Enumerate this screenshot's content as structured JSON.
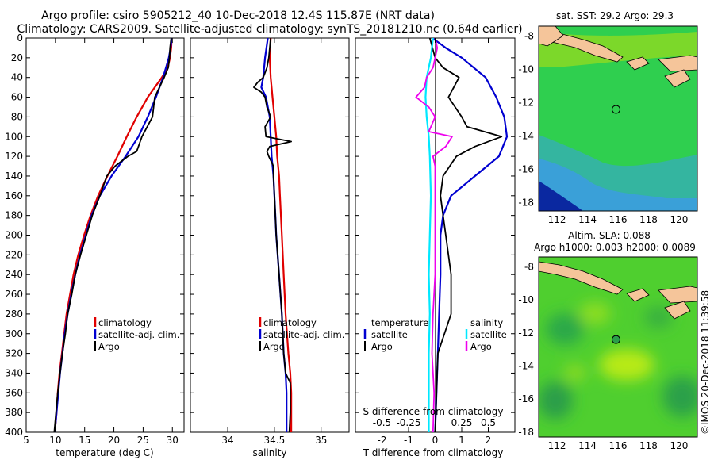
{
  "title_line1": "Argo profile: csiro 5905212_40 10-Dec-2018 12.4S 115.87E (NRT data)",
  "title_line2": "Climatology: CARS2009. Satellite-adjusted climatology: synTS_20181210.nc (0.64d earlier)",
  "watermark": "©IMOS 20-Dec-2018 11:39:58",
  "colors": {
    "climatology": "#e00000",
    "satellite": "#0000d0",
    "argo": "#000000",
    "s_satellite": "#00e8ff",
    "s_argo": "#ee00ee",
    "land": "#f5c59a"
  },
  "chart_data": [
    {
      "id": "temperature",
      "type": "line",
      "xlabel": "temperature (deg C)",
      "ylabel": "",
      "xlim": [
        5,
        32
      ],
      "ylim": [
        400,
        0
      ],
      "xticks": [
        "5",
        "10",
        "15",
        "20",
        "25",
        "30"
      ],
      "xtick_values": [
        5,
        10,
        15,
        20,
        25,
        30
      ],
      "yticks": [
        "0",
        "20",
        "40",
        "60",
        "80",
        "100",
        "120",
        "140",
        "160",
        "180",
        "200",
        "220",
        "240",
        "260",
        "280",
        "300",
        "320",
        "340",
        "360",
        "380",
        "400"
      ],
      "ytick_values": [
        0,
        20,
        40,
        60,
        80,
        100,
        120,
        140,
        160,
        180,
        200,
        220,
        240,
        260,
        280,
        300,
        320,
        340,
        360,
        380,
        400
      ],
      "legend": [
        "climatology",
        "satellite-adj. clim.",
        "Argo"
      ],
      "series": [
        {
          "name": "climatology",
          "color": "#e00000",
          "depth": [
            0,
            10,
            20,
            30,
            40,
            60,
            80,
            100,
            120,
            140,
            160,
            180,
            200,
            220,
            240,
            260,
            280,
            300,
            320,
            340,
            360,
            380,
            400
          ],
          "values": [
            29.9,
            29.8,
            29.6,
            29.2,
            28.2,
            25.8,
            23.9,
            22.2,
            20.6,
            18.9,
            17.3,
            16.0,
            14.9,
            13.9,
            13.1,
            12.5,
            11.9,
            11.5,
            11.1,
            10.7,
            10.4,
            10.2,
            9.9
          ]
        },
        {
          "name": "satellite-adj. clim.",
          "color": "#0000d0",
          "depth": [
            0,
            10,
            20,
            30,
            40,
            60,
            80,
            100,
            120,
            140,
            160,
            180,
            200,
            220,
            240,
            260,
            280,
            300,
            320,
            340,
            360,
            380,
            400
          ],
          "values": [
            29.9,
            29.7,
            29.4,
            28.9,
            28.4,
            27.2,
            25.8,
            24.2,
            22.0,
            19.6,
            17.6,
            16.2,
            15.2,
            14.2,
            13.4,
            12.7,
            12.1,
            11.6,
            11.2,
            10.8,
            10.5,
            10.2,
            9.9
          ]
        },
        {
          "name": "Argo",
          "color": "#000000",
          "depth": [
            0,
            10,
            20,
            30,
            40,
            60,
            80,
            100,
            115,
            120,
            130,
            140,
            150,
            160,
            180,
            200,
            220,
            240,
            260,
            280,
            300,
            320,
            340,
            360,
            380,
            400
          ],
          "values": [
            29.8,
            29.6,
            29.5,
            29.3,
            28.6,
            27.0,
            26.6,
            24.8,
            23.9,
            22.4,
            20.2,
            18.8,
            18.2,
            17.6,
            16.3,
            15.3,
            14.3,
            13.4,
            12.8,
            12.1,
            11.7,
            11.2,
            10.8,
            10.4,
            10.1,
            9.8
          ]
        }
      ]
    },
    {
      "id": "salinity",
      "type": "line",
      "xlabel": "salinity",
      "xlim": [
        33.6,
        35.3
      ],
      "ylim": [
        400,
        0
      ],
      "xticks": [
        "34",
        "34.5",
        "35"
      ],
      "xtick_values": [
        34,
        34.5,
        35
      ],
      "legend": [
        "climatology",
        "satellite-adj. clim.",
        "Argo"
      ],
      "series": [
        {
          "name": "climatology",
          "color": "#e00000",
          "depth": [
            0,
            20,
            40,
            60,
            80,
            100,
            120,
            140,
            160,
            180,
            200,
            240,
            280,
            320,
            340,
            360,
            380,
            400
          ],
          "values": [
            34.46,
            34.45,
            34.46,
            34.48,
            34.5,
            34.52,
            34.53,
            34.55,
            34.56,
            34.57,
            34.58,
            34.6,
            34.62,
            34.65,
            34.67,
            34.68,
            34.68,
            34.68
          ]
        },
        {
          "name": "satellite-adj. clim.",
          "color": "#0000d0",
          "depth": [
            0,
            20,
            40,
            50,
            60,
            80,
            100,
            120,
            140,
            160,
            180,
            200,
            240,
            280,
            320,
            340,
            360,
            380,
            400
          ],
          "values": [
            34.43,
            34.4,
            34.38,
            34.36,
            34.41,
            34.45,
            34.46,
            34.47,
            34.49,
            34.5,
            34.51,
            34.52,
            34.55,
            34.58,
            34.6,
            34.62,
            34.63,
            34.63,
            34.63
          ]
        },
        {
          "name": "Argo",
          "color": "#000000",
          "depth": [
            0,
            10,
            20,
            30,
            40,
            45,
            50,
            55,
            60,
            70,
            80,
            90,
            100,
            105,
            110,
            115,
            120,
            130,
            140,
            160,
            180,
            200,
            240,
            280,
            320,
            340,
            350,
            360,
            380,
            400
          ],
          "values": [
            34.46,
            34.45,
            34.44,
            34.42,
            34.38,
            34.32,
            34.28,
            34.36,
            34.4,
            34.42,
            34.46,
            34.4,
            34.41,
            34.68,
            34.45,
            34.42,
            34.44,
            34.49,
            34.49,
            34.5,
            34.51,
            34.52,
            34.55,
            34.58,
            34.6,
            34.62,
            34.67,
            34.67,
            34.67,
            34.66
          ]
        }
      ]
    },
    {
      "id": "difference",
      "type": "line",
      "xlabel": "T difference from climatology",
      "secondary_xlabel": "S difference from climatology",
      "xlim": [
        -3,
        3
      ],
      "ylim": [
        400,
        0
      ],
      "xticks": [
        "-2",
        "-1",
        "0",
        "1",
        "2"
      ],
      "xtick_values": [
        -2,
        -1,
        0,
        1,
        2
      ],
      "secondary_xticks": [
        "-0.5",
        "-0.25",
        "0.25",
        "0.5"
      ],
      "secondary_xtick_values": [
        -0.5,
        -0.25,
        0.25,
        0.5
      ],
      "legend_left_title": "temperature",
      "legend_right_title": "salinity",
      "legend_left": [
        "satellite",
        "Argo"
      ],
      "legend_right": [
        "satellite",
        "Argo"
      ],
      "series": [
        {
          "name": "T satellite",
          "color": "#0000d0",
          "depth": [
            0,
            10,
            20,
            40,
            60,
            80,
            100,
            120,
            140,
            160,
            180,
            200,
            240,
            280,
            320,
            360,
            400
          ],
          "values": [
            -0.1,
            0.4,
            1.0,
            1.9,
            2.3,
            2.6,
            2.7,
            2.4,
            1.5,
            0.6,
            0.3,
            0.2,
            0.2,
            0.15,
            0.1,
            0.05,
            0.0
          ]
        },
        {
          "name": "T Argo",
          "color": "#000000",
          "depth": [
            0,
            10,
            20,
            30,
            40,
            50,
            60,
            80,
            90,
            100,
            110,
            120,
            140,
            160,
            180,
            200,
            240,
            280,
            320,
            360,
            400
          ],
          "values": [
            -0.2,
            -0.1,
            0.0,
            0.3,
            0.9,
            0.7,
            0.5,
            1.0,
            1.2,
            2.5,
            1.5,
            0.8,
            0.3,
            0.2,
            0.3,
            0.4,
            0.6,
            0.6,
            0.1,
            0.05,
            0.0
          ]
        },
        {
          "name": "S satellite",
          "color": "#00e8ff",
          "depth": [
            0,
            20,
            40,
            60,
            80,
            100,
            120,
            160,
            200,
            240,
            280,
            320,
            360,
            400
          ],
          "values": [
            -0.02,
            -0.04,
            -0.08,
            -0.09,
            -0.08,
            -0.06,
            -0.05,
            -0.04,
            -0.05,
            -0.06,
            -0.05,
            -0.06,
            -0.06,
            -0.06
          ]
        },
        {
          "name": "S Argo",
          "color": "#ee00ee",
          "depth": [
            0,
            10,
            20,
            30,
            40,
            50,
            60,
            70,
            80,
            95,
            100,
            110,
            120,
            130,
            140,
            160,
            200,
            240,
            280,
            320,
            360,
            400
          ],
          "values": [
            0.0,
            0.02,
            0.0,
            -0.02,
            -0.08,
            -0.1,
            -0.18,
            -0.06,
            0.0,
            -0.06,
            0.16,
            0.1,
            -0.02,
            0.0,
            0.0,
            0.0,
            0.0,
            0.0,
            -0.02,
            -0.03,
            -0.01,
            -0.02
          ]
        }
      ]
    },
    {
      "id": "sst_map",
      "type": "heatmap",
      "title": "sat. SST: 29.2 Argo: 29.3",
      "xlim": [
        110.8,
        121.2
      ],
      "ylim": [
        -18.5,
        -7.4
      ],
      "xticks": [
        "112",
        "114",
        "116",
        "118",
        "120"
      ],
      "xtick_values": [
        112,
        114,
        116,
        118,
        120
      ],
      "yticks": [
        "-8",
        "-10",
        "-12",
        "-14",
        "-16",
        "-18"
      ],
      "ytick_values": [
        -8,
        -10,
        -12,
        -14,
        -16,
        -18
      ],
      "marker": {
        "lon": 115.87,
        "lat": -12.4
      }
    },
    {
      "id": "sla_map",
      "type": "heatmap",
      "title": "Altim. SLA: 0.088",
      "subtitle": "Argo h1000: 0.003 h2000: 0.0089",
      "xlim": [
        110.8,
        121.2
      ],
      "ylim": [
        -18.3,
        -7.4
      ],
      "xticks": [
        "112",
        "114",
        "116",
        "118",
        "120"
      ],
      "xtick_values": [
        112,
        114,
        116,
        118,
        120
      ],
      "yticks": [
        "-8",
        "-10",
        "-12",
        "-14",
        "-16",
        "-18"
      ],
      "ytick_values": [
        -8,
        -10,
        -12,
        -14,
        -16,
        -18
      ],
      "marker": {
        "lon": 115.87,
        "lat": -12.4
      }
    }
  ]
}
